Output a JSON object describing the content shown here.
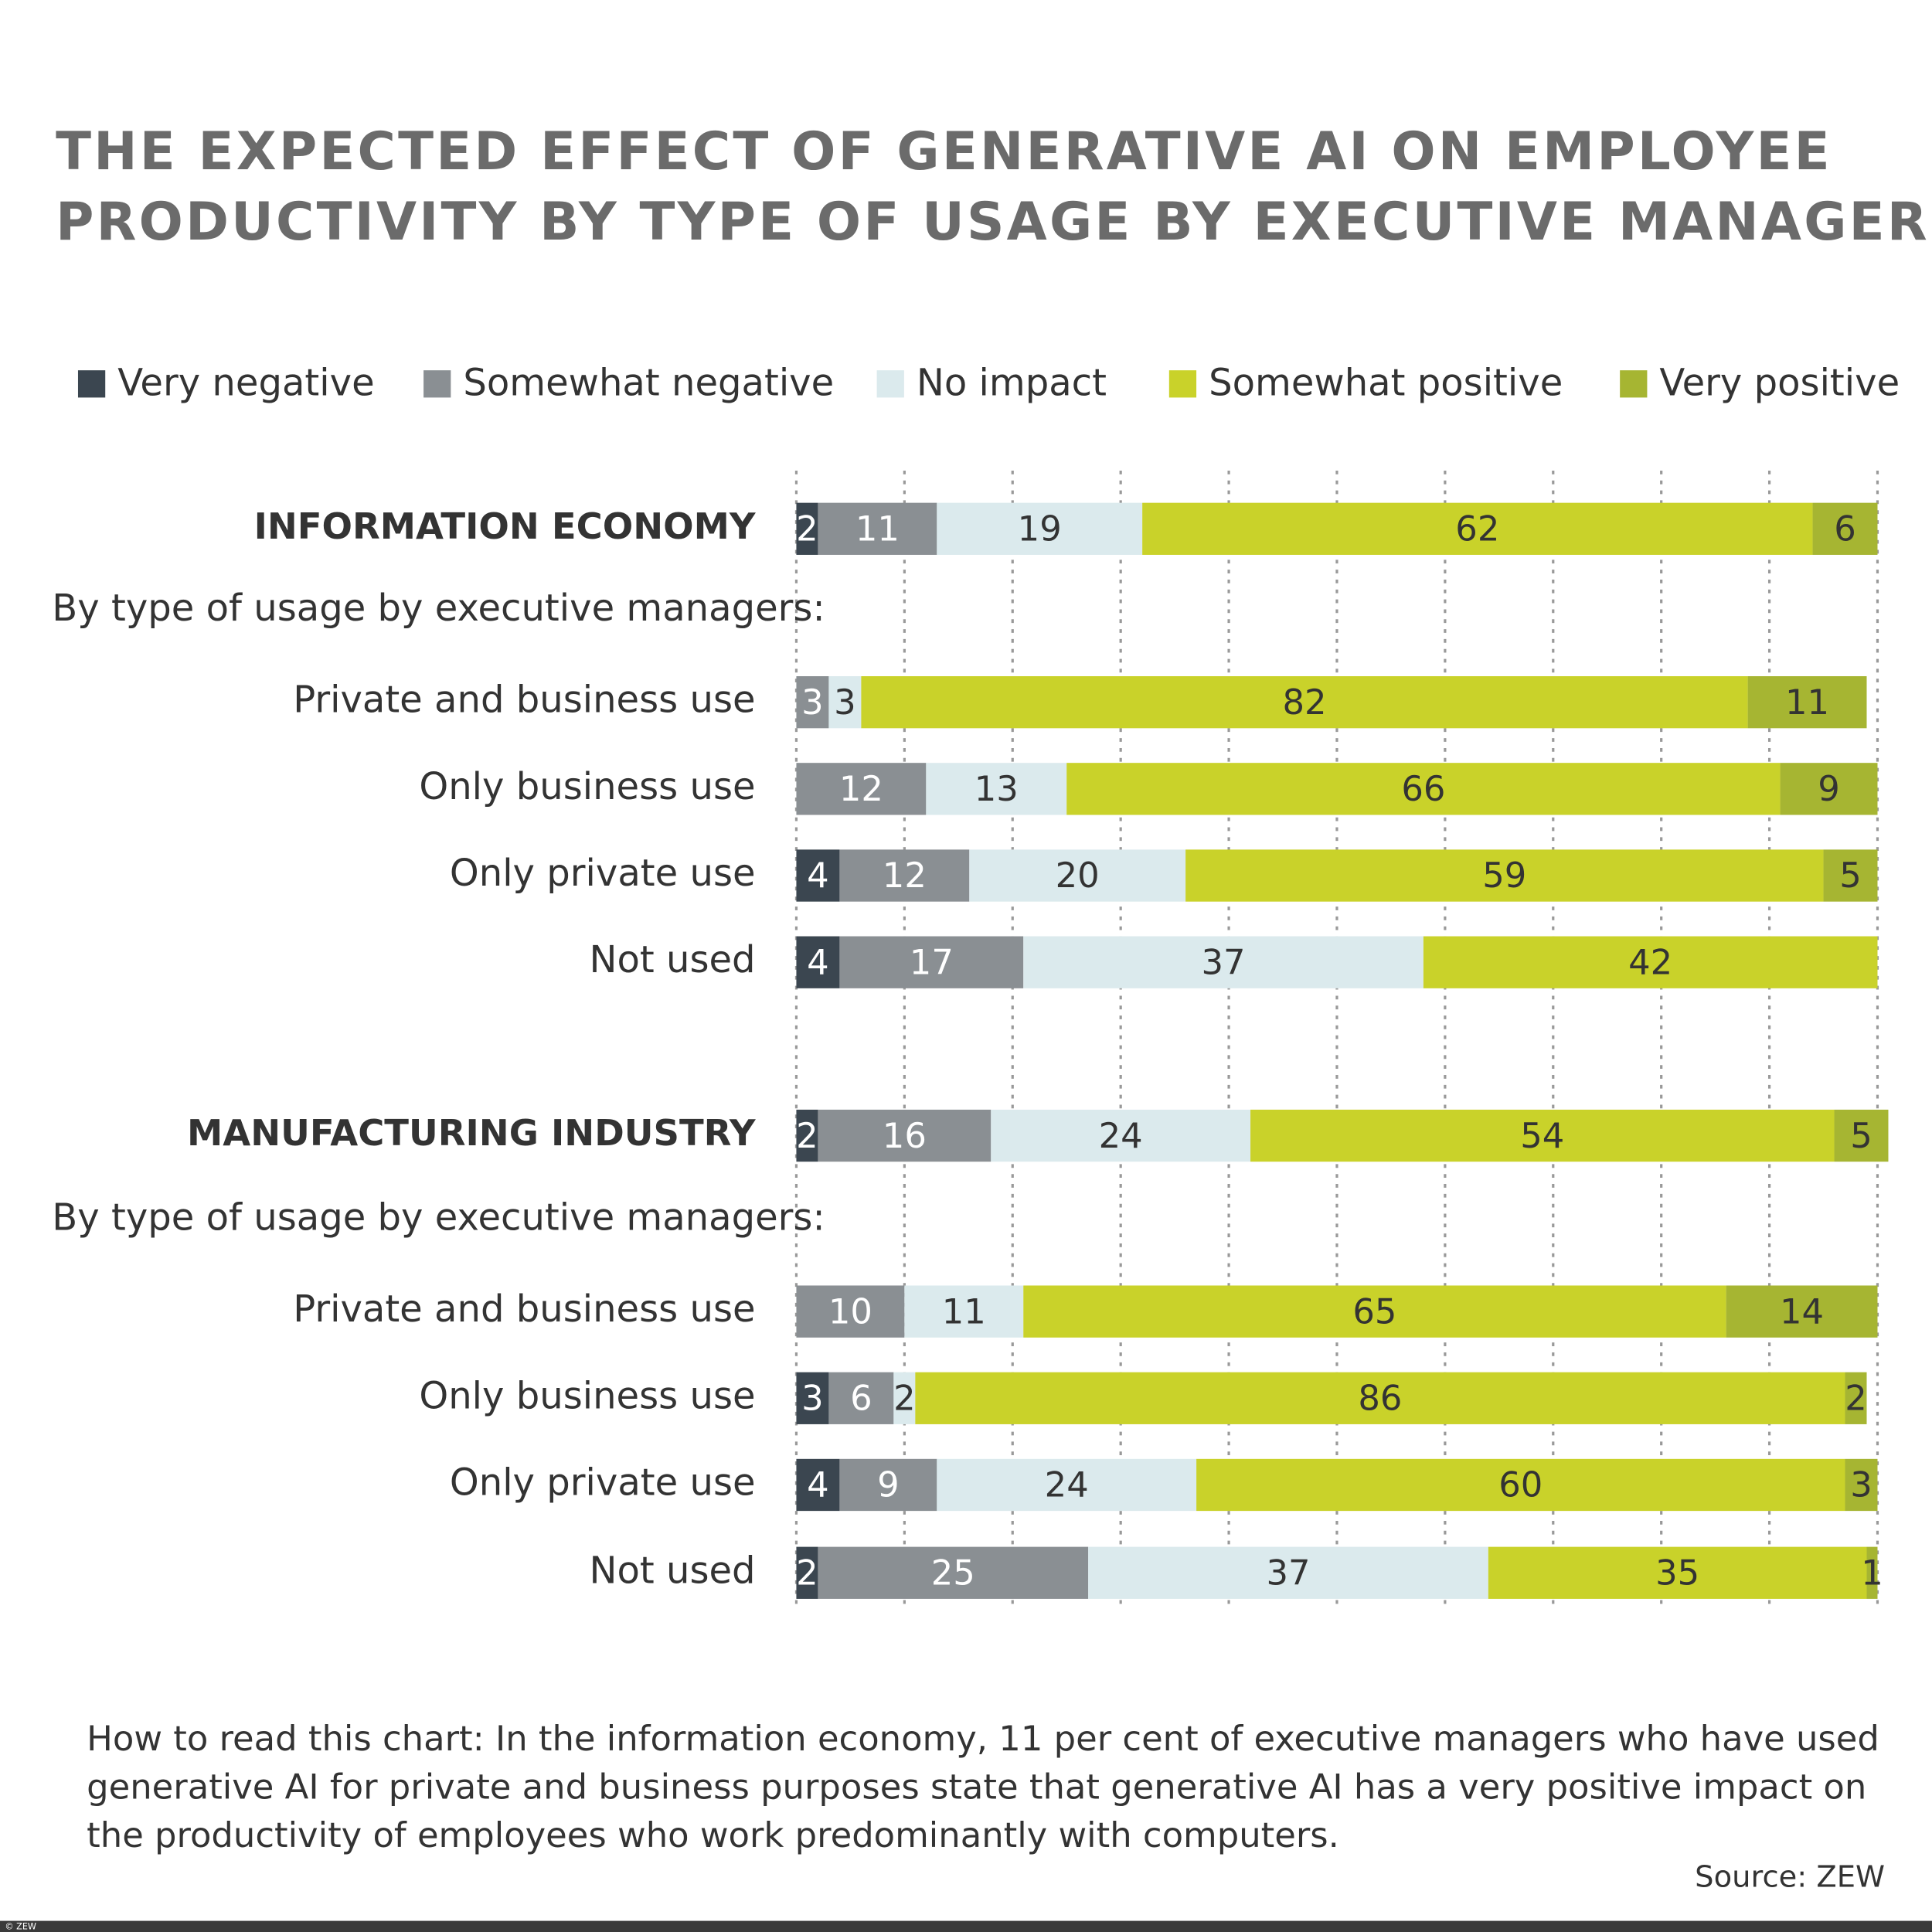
{
  "chart_data": {
    "type": "stacked_bar_horizontal",
    "title": [
      "THE EXPECTED EFFECT OF GENERATIVE AI ON EMPLOYEE",
      "PRODUCTIVITY BY TYPE OF USAGE BY EXECUTIVE MANAGERS"
    ],
    "categories": [
      "INFORMATION ECONOMY",
      "By type of usage by executive managers:",
      "Private and business use",
      "Only business use",
      "Only private use",
      "Not used",
      "MANUFACTURING INDUSTRY",
      "By type of usage by executive managers:",
      "Private and business use",
      "Only business use",
      "Only private use",
      "Not used"
    ],
    "series": [
      {
        "name": "Very negative",
        "color": "#3b4650",
        "values": [
          2,
          null,
          null,
          null,
          4,
          4,
          2,
          null,
          null,
          3,
          4,
          2
        ]
      },
      {
        "name": "Somewhat negative",
        "color": "#8a8f93",
        "values": [
          11,
          null,
          3,
          12,
          12,
          17,
          16,
          null,
          10,
          6,
          9,
          25
        ]
      },
      {
        "name": "No impact",
        "color": "#dbeaed",
        "values": [
          19,
          null,
          3,
          13,
          20,
          37,
          24,
          null,
          11,
          2,
          24,
          37
        ]
      },
      {
        "name": "Somewhat positive",
        "color": "#c9d22a",
        "values": [
          62,
          null,
          82,
          66,
          59,
          42,
          54,
          null,
          65,
          86,
          60,
          35
        ]
      },
      {
        "name": "Very positive",
        "color": "#a6b532",
        "values": [
          6,
          null,
          11,
          9,
          5,
          null,
          5,
          null,
          14,
          2,
          3,
          1
        ]
      }
    ],
    "xlim": [
      0,
      100
    ],
    "xticks": [
      0,
      10,
      20,
      30,
      40,
      50,
      60,
      70,
      80,
      90,
      100
    ],
    "grid": true,
    "note": [
      "How to read this chart: In the information economy, 11 per cent of executive managers who have used",
      "generative AI for private and business purposes state that generative AI has a very positive impact on",
      "the productivity of employees who work predominantly with computers."
    ],
    "source": "Source: ZEW",
    "copyright": "© ZEW"
  }
}
